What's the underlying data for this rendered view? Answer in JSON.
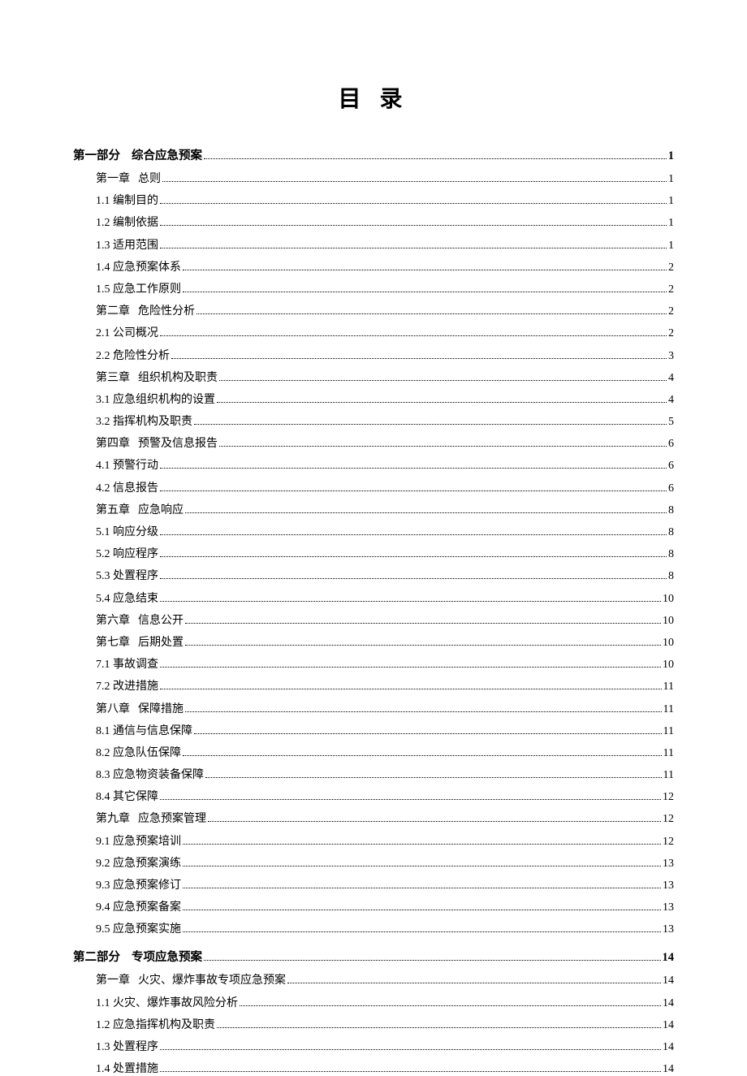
{
  "title": "目 录",
  "parts": [
    {
      "label": "第一部分",
      "title": "综合应急预案",
      "page": "1",
      "entries": [
        {
          "label": "第一章",
          "title": "总则",
          "page": "1",
          "isChapter": true
        },
        {
          "label": "1.1",
          "title": "编制目的",
          "page": "1"
        },
        {
          "label": "1.2",
          "title": "编制依据",
          "page": "1"
        },
        {
          "label": "1.3",
          "title": "适用范围",
          "page": "1"
        },
        {
          "label": "1.4",
          "title": "应急预案体系",
          "page": "2"
        },
        {
          "label": "1.5",
          "title": "应急工作原则",
          "page": "2"
        },
        {
          "label": "第二章",
          "title": "危险性分析",
          "page": "2",
          "isChapter": true
        },
        {
          "label": "2.1",
          "title": "公司概况",
          "page": "2"
        },
        {
          "label": "2.2",
          "title": "危险性分析",
          "page": "3"
        },
        {
          "label": "第三章",
          "title": "组织机构及职责",
          "page": "4",
          "isChapter": true
        },
        {
          "label": "3.1",
          "title": "应急组织机构的设置",
          "page": "4"
        },
        {
          "label": "3.2",
          "title": "指挥机构及职责",
          "page": "5"
        },
        {
          "label": "第四章",
          "title": "预警及信息报告",
          "page": "6",
          "isChapter": true
        },
        {
          "label": "4.1",
          "title": "预警行动",
          "page": "6"
        },
        {
          "label": "4.2",
          "title": "信息报告",
          "page": "6"
        },
        {
          "label": "第五章",
          "title": "应急响应",
          "page": "8",
          "isChapter": true
        },
        {
          "label": "5.1",
          "title": "响应分级",
          "page": "8"
        },
        {
          "label": "5.2",
          "title": "响应程序",
          "page": "8"
        },
        {
          "label": "5.3",
          "title": "处置程序",
          "page": "8"
        },
        {
          "label": "5.4",
          "title": "应急结束",
          "page": "10"
        },
        {
          "label": "第六章",
          "title": "信息公开",
          "page": "10",
          "isChapter": true
        },
        {
          "label": "第七章",
          "title": "后期处置",
          "page": "10",
          "isChapter": true
        },
        {
          "label": "7.1",
          "title": "事故调查",
          "page": "10"
        },
        {
          "label": "7.2",
          "title": "改进措施",
          "page": "11"
        },
        {
          "label": "第八章",
          "title": "保障措施",
          "page": "11",
          "isChapter": true
        },
        {
          "label": "8.1",
          "title": "通信与信息保障",
          "page": "11"
        },
        {
          "label": "8.2",
          "title": "应急队伍保障",
          "page": "11"
        },
        {
          "label": "8.3",
          "title": "应急物资装备保障",
          "page": "11"
        },
        {
          "label": "8.4",
          "title": "其它保障",
          "page": "12"
        },
        {
          "label": "第九章",
          "title": "应急预案管理",
          "page": "12",
          "isChapter": true
        },
        {
          "label": "9.1",
          "title": "应急预案培训",
          "page": "12"
        },
        {
          "label": "9.2",
          "title": "应急预案演练",
          "page": "13"
        },
        {
          "label": "9.3",
          "title": "应急预案修订",
          "page": "13"
        },
        {
          "label": "9.4",
          "title": "应急预案备案",
          "page": "13"
        },
        {
          "label": "9.5",
          "title": "应急预案实施",
          "page": "13"
        }
      ]
    },
    {
      "label": "第二部分",
      "title": "专项应急预案",
      "page": "14",
      "entries": [
        {
          "label": "第一章",
          "title": "火灾、爆炸事故专项应急预案",
          "page": "14",
          "isChapter": true
        },
        {
          "label": "1.1",
          "title": "火灾、爆炸事故风险分析",
          "page": "14"
        },
        {
          "label": "1.2",
          "title": "应急指挥机构及职责",
          "page": "14"
        },
        {
          "label": "1.3",
          "title": "处置程序",
          "page": "14"
        },
        {
          "label": "1.4",
          "title": "处置措施",
          "page": "14"
        }
      ]
    }
  ]
}
